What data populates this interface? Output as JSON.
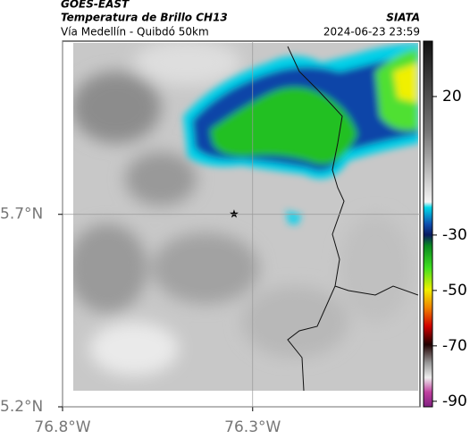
{
  "header": {
    "source": "GOES-EAST",
    "product": "Temperatura de Brillo CH13",
    "route": "Vía Medellín - Quibdó 50km",
    "brand": "SIATA",
    "timestamp": "2024-06-23 23:59"
  },
  "map": {
    "xlim": [
      -76.8,
      -75.86
    ],
    "ylim": [
      5.2,
      6.15
    ],
    "xticks": [
      {
        "value": -76.8,
        "label": "76.8°W"
      },
      {
        "value": -76.3,
        "label": "76.3°W"
      }
    ],
    "yticks": [
      {
        "value": 5.2,
        "label": "5.2°N"
      },
      {
        "value": 5.7,
        "label": "5.7°N"
      }
    ]
  },
  "colorbar": {
    "lim": [
      -92,
      40
    ],
    "ticks": [
      20,
      -30,
      -50,
      -70,
      -90
    ]
  }
}
